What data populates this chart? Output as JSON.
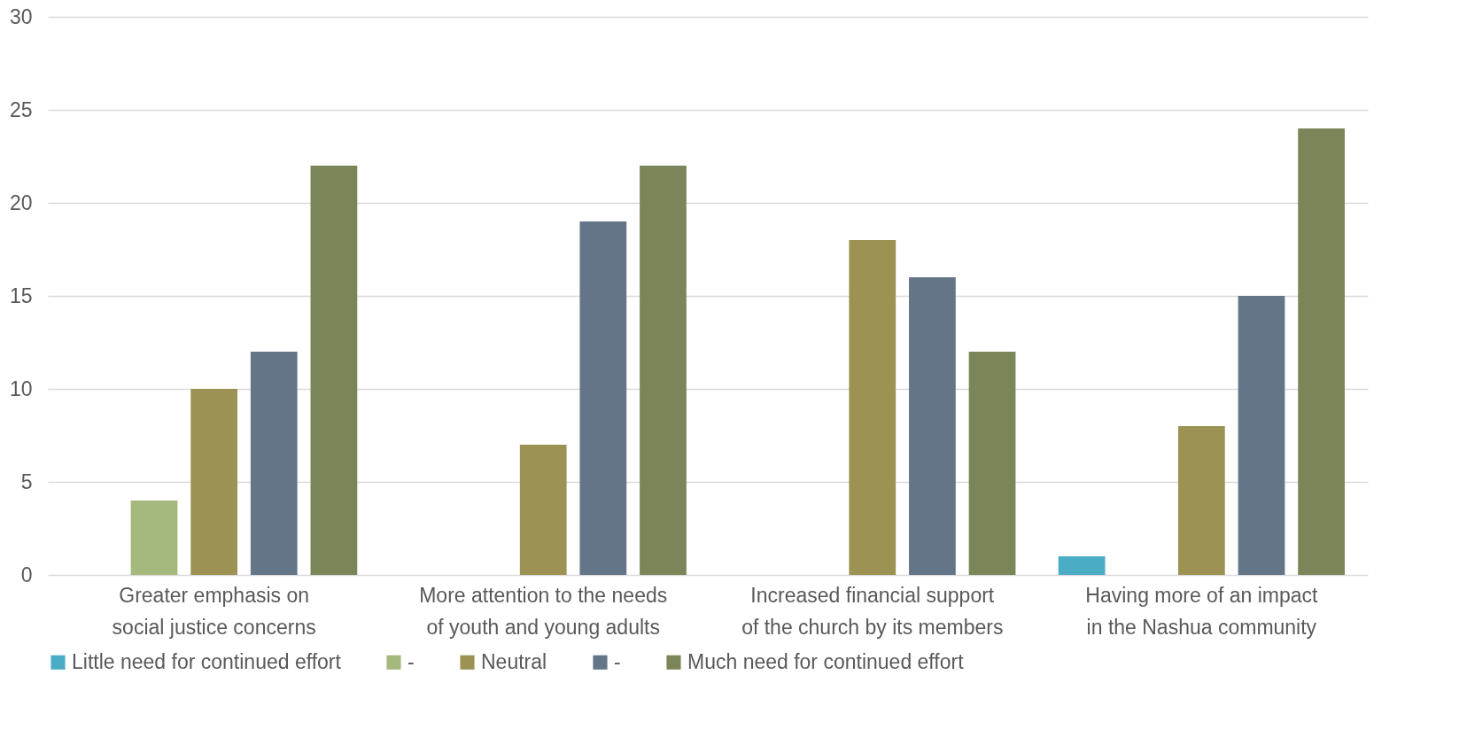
{
  "chart_data": {
    "type": "bar",
    "categories": [
      "Greater emphasis on social justice concerns",
      "More attention to the needs of youth and young adults",
      "Increased financial support of the church by its members",
      "Having more of an impact in the Nashua community"
    ],
    "series": [
      {
        "name": "Little need for continued effort",
        "color": "#4bacc6",
        "values": [
          0,
          0,
          0,
          1
        ]
      },
      {
        "name": "-",
        "color": "#a5b87d",
        "values": [
          4,
          0,
          0,
          0
        ]
      },
      {
        "name": "Neutral",
        "color": "#9c9254",
        "values": [
          10,
          7,
          18,
          8
        ]
      },
      {
        "name": "-",
        "color": "#637587",
        "values": [
          12,
          19,
          16,
          15
        ]
      },
      {
        "name": "Much need for continued effort",
        "color": "#7a8659",
        "values": [
          22,
          22,
          12,
          24
        ]
      }
    ],
    "ylim": [
      0,
      30
    ],
    "yticks": [
      0,
      5,
      10,
      15,
      20,
      25,
      30
    ],
    "grid": "y",
    "legend": "bottom"
  }
}
